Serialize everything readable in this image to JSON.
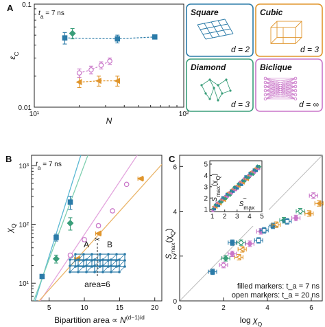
{
  "colors": {
    "square": "#2b7ba8",
    "cubic": "#e0952c",
    "diamond": "#3a9e7a",
    "biclique": "#c975c8",
    "fit_square": "#5ab8d3",
    "fit_diamond": "#7fcfb0",
    "fit_biclique": "#e3a5dd",
    "fit_cubic": "#eab56a",
    "identity": "#bbbbbb"
  },
  "chart_data": [
    {
      "panel": "A",
      "type": "scatter",
      "annotation": "t_a = 7 ns",
      "xlabel": "N",
      "ylabel": "ε_C",
      "xscale": "log",
      "yscale": "log",
      "xlim": [
        10,
        100
      ],
      "ylim": [
        0.01,
        0.1
      ],
      "xticks": [
        "10¹",
        "10²"
      ],
      "yticks": [
        "0.1",
        "0.01"
      ],
      "series": [
        {
          "key": "square",
          "x": [
            16,
            36,
            64
          ],
          "y": [
            0.047,
            0.046,
            0.048
          ],
          "err": [
            0.006,
            0.004,
            0.002
          ]
        },
        {
          "key": "diamond",
          "x": [
            18
          ],
          "y": [
            0.052
          ],
          "err": [
            0.006
          ]
        },
        {
          "key": "cubic",
          "x": [
            20,
            27,
            36
          ],
          "y": [
            0.0175,
            0.018,
            0.018
          ],
          "err": [
            0.002,
            0.002,
            0.002
          ]
        },
        {
          "key": "biclique",
          "x": [
            20,
            24,
            28,
            32
          ],
          "y": [
            0.0215,
            0.023,
            0.0255,
            0.028
          ],
          "err": [
            0.002,
            0.002,
            0.002,
            0.002
          ]
        }
      ]
    },
    {
      "panel": "legend",
      "entries": [
        {
          "key": "square",
          "name": "Square",
          "d": "d = 2"
        },
        {
          "key": "cubic",
          "name": "Cubic",
          "d": "d = 3"
        },
        {
          "key": "diamond",
          "name": "Diamond",
          "d": "d = 3"
        },
        {
          "key": "biclique",
          "name": "Biclique",
          "d": "d = ∞"
        }
      ]
    },
    {
      "panel": "B",
      "type": "scatter",
      "annotation": "t_a = 7 ns",
      "xlabel": "Bipartition area ∝ N^((d−1)/d)",
      "ylabel": "χ_Q",
      "yscale": "log",
      "xlim": [
        2.5,
        21
      ],
      "ylim": [
        5,
        1500
      ],
      "xticks": [
        5,
        10,
        15,
        20
      ],
      "yticks": [
        "10¹",
        "10²",
        "10³"
      ],
      "inset": {
        "labels": [
          "A",
          "B"
        ],
        "area_label": "area=6"
      },
      "series": [
        {
          "key": "square",
          "x": [
            4,
            6,
            8
          ],
          "y": [
            13,
            60,
            240
          ],
          "err": [
            1,
            8,
            60
          ]
        },
        {
          "key": "diamond",
          "x": [
            6,
            8
          ],
          "y": [
            26,
            105
          ],
          "err": [
            4,
            25
          ]
        },
        {
          "key": "biclique",
          "x": [
            8,
            10,
            12,
            14,
            16
          ],
          "y": [
            30,
            55,
            95,
            170,
            480
          ],
          "err": [
            2,
            4,
            6,
            10,
            20
          ]
        },
        {
          "key": "cubic",
          "x": [
            9,
            12,
            18
          ],
          "y": [
            26,
            70,
            600
          ],
          "err": [
            2,
            4,
            40
          ]
        }
      ]
    },
    {
      "panel": "C",
      "type": "scatter",
      "xlabel": "log χ_Q",
      "ylabel": "S_max(χ_Q)",
      "xlim": [
        0,
        6.5
      ],
      "ylim": [
        0,
        6.5
      ],
      "xticks": [
        0,
        2,
        4,
        6
      ],
      "yticks": [
        0,
        2,
        4,
        6
      ],
      "notes": [
        "filled markers: t_a = 7 ns",
        "open markers: t_a = 20 ns"
      ],
      "points": [
        {
          "key": "square",
          "x": 1.5,
          "y": 1.3
        },
        {
          "key": "biclique",
          "x": 2.0,
          "y": 1.6
        },
        {
          "key": "diamond",
          "x": 2.1,
          "y": 1.9
        },
        {
          "key": "cubic",
          "x": 2.7,
          "y": 1.95
        },
        {
          "key": "biclique",
          "x": 2.4,
          "y": 2.1
        },
        {
          "key": "cubic",
          "x": 2.85,
          "y": 2.3
        },
        {
          "key": "square",
          "x": 2.4,
          "y": 2.6
        },
        {
          "key": "diamond",
          "x": 2.8,
          "y": 2.6
        },
        {
          "key": "biclique",
          "x": 3.2,
          "y": 2.55
        },
        {
          "key": "square",
          "x": 3.6,
          "y": 2.7
        },
        {
          "key": "biclique",
          "x": 3.7,
          "y": 3.1
        },
        {
          "key": "square",
          "x": 3.85,
          "y": 3.15
        },
        {
          "key": "square",
          "x": 4.25,
          "y": 3.35
        },
        {
          "key": "cubic",
          "x": 4.4,
          "y": 3.4
        },
        {
          "key": "diamond",
          "x": 4.75,
          "y": 3.6
        },
        {
          "key": "square",
          "x": 4.9,
          "y": 3.55
        },
        {
          "key": "biclique",
          "x": 5.3,
          "y": 3.7
        },
        {
          "key": "diamond",
          "x": 5.5,
          "y": 4.0
        },
        {
          "key": "cubic",
          "x": 5.9,
          "y": 3.9
        },
        {
          "key": "biclique",
          "x": 6.1,
          "y": 4.7
        },
        {
          "key": "cubic",
          "x": 6.35,
          "y": 4.35
        }
      ],
      "inset": {
        "xlabel": "S̃_max",
        "ylabel": "S_max(χ_Q)",
        "xlim": [
          0.8,
          5
        ],
        "ylim": [
          0.8,
          5.3
        ],
        "xticks": [
          1,
          2,
          3,
          4,
          5
        ],
        "yticks": [
          1,
          2,
          3,
          4,
          5
        ]
      }
    }
  ]
}
